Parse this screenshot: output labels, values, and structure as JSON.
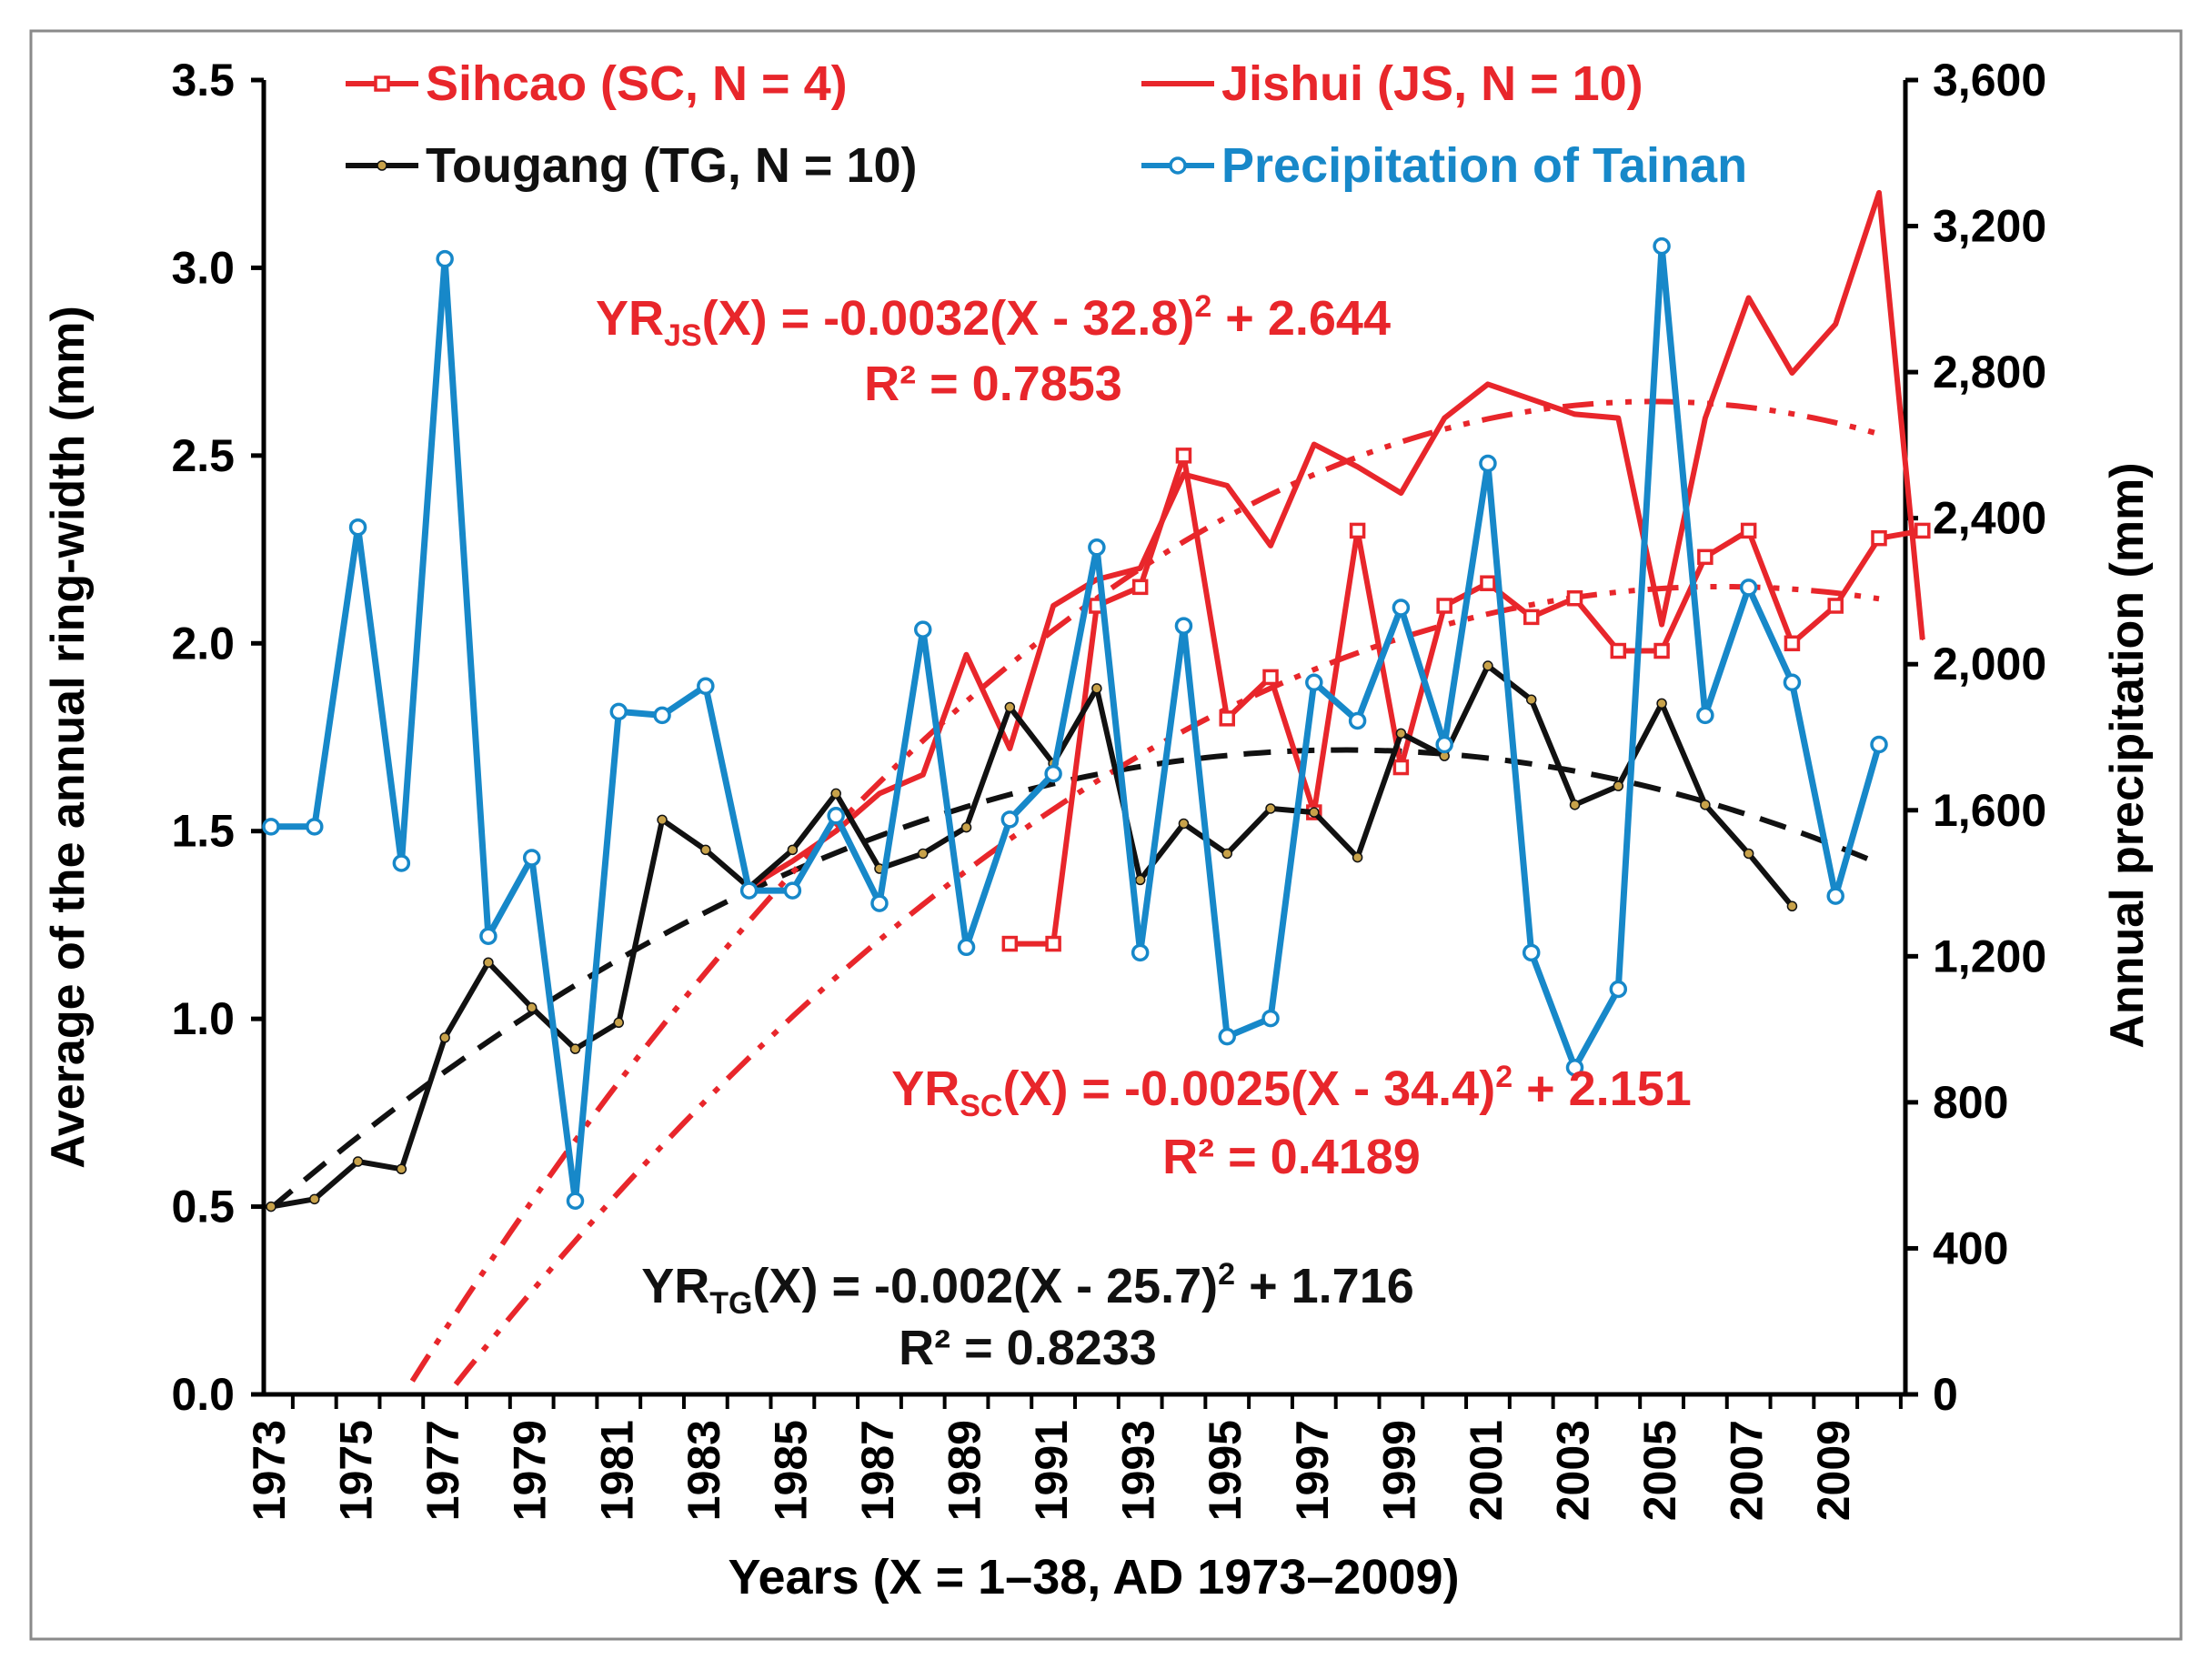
{
  "chart_data": {
    "type": "line",
    "xlabel": "Years (X = 1–38, AD 1973–2009)",
    "ylabel_left": "Average of the annual ring-width (mm)",
    "ylabel_right": "Annual precipitation (mm)",
    "ylim_left": [
      0,
      3.5
    ],
    "ylim_right": [
      0,
      3600
    ],
    "y_ticks_left": [
      0.0,
      0.5,
      1.0,
      1.5,
      2.0,
      2.5,
      3.0,
      3.5
    ],
    "y_tick_labels_left": [
      "0.0",
      "0.5",
      "1.0",
      "1.5",
      "2.0",
      "2.5",
      "3.0",
      "3.5"
    ],
    "y_ticks_right": [
      0,
      400,
      800,
      1200,
      1600,
      2000,
      2400,
      2800,
      3200,
      3600
    ],
    "y_tick_labels_right": [
      "0",
      "400",
      "800",
      "1,200",
      "1,600",
      "2,000",
      "2,400",
      "2,800",
      "3,200",
      "3,600"
    ],
    "x_tick_labels": [
      "1973",
      "1975",
      "1977",
      "1979",
      "1981",
      "1983",
      "1985",
      "1987",
      "1989",
      "1991",
      "1993",
      "1995",
      "1997",
      "1999",
      "2001",
      "2003",
      "2005",
      "2007",
      "2009"
    ],
    "grid": false,
    "legend_position": "top",
    "series": [
      {
        "key": "sc",
        "name": "Sihcao (SC, N = 4)",
        "color": "#e8262b",
        "axis": "left",
        "marker": "square",
        "x_start": 1990,
        "values": [
          1.2,
          1.2,
          2.1,
          2.15,
          2.5,
          1.8,
          1.91,
          1.55,
          2.3,
          1.67,
          2.1,
          2.16,
          2.07,
          2.12,
          1.98,
          1.98,
          2.23,
          2.3,
          2.0,
          2.1,
          2.28,
          2.3
        ]
      },
      {
        "key": "js",
        "name": "Jishui (JS, N = 10)",
        "color": "#e8262b",
        "axis": "left",
        "marker": "none",
        "x_start": 1984,
        "values": [
          1.35,
          1.42,
          1.5,
          1.6,
          1.65,
          1.97,
          1.72,
          2.1,
          2.17,
          2.2,
          2.45,
          2.42,
          2.26,
          2.53,
          2.47,
          2.4,
          2.6,
          2.69,
          2.65,
          2.61,
          2.6,
          2.05,
          2.6,
          2.92,
          2.72,
          2.85,
          3.2,
          2.01
        ]
      },
      {
        "key": "tg",
        "name": "Tougang (TG, N = 10)",
        "color": "#111111",
        "axis": "left",
        "marker": "dot",
        "x_start": 1973,
        "values": [
          0.5,
          0.52,
          0.62,
          0.6,
          0.95,
          1.15,
          1.03,
          0.92,
          0.99,
          1.53,
          1.45,
          1.35,
          1.45,
          1.6,
          1.4,
          1.44,
          1.51,
          1.83,
          1.68,
          1.88,
          1.37,
          1.52,
          1.44,
          1.56,
          1.55,
          1.43,
          1.76,
          1.7,
          1.94,
          1.85,
          1.57,
          1.62,
          1.84,
          1.57,
          1.44,
          1.3
        ]
      },
      {
        "key": "pr",
        "name": "Precipitation of Tainan",
        "color": "#1788c9",
        "axis": "right",
        "marker": "circle",
        "x_start": 1973,
        "values": [
          1555,
          1555,
          2375,
          1455,
          3110,
          1255,
          1470,
          530,
          1870,
          1860,
          1940,
          1380,
          1380,
          1585,
          1345,
          2095,
          1225,
          1575,
          1700,
          2320,
          1210,
          2105,
          980,
          1030,
          1950,
          1845,
          2155,
          1780,
          2550,
          1210,
          895,
          1110,
          3145,
          1860,
          2210,
          1950,
          1365,
          1780
        ]
      }
    ],
    "trendlines": [
      {
        "key": "tg_fit",
        "equation_prefix": "YR",
        "equation_sub": "TG",
        "equation_body": "(X) = -0.002(X - 25.7)",
        "equation_sup": "2",
        "equation_tail": " + 1.716",
        "r2": "R² = 0.8233",
        "a": -0.002,
        "h": 25.7,
        "k": 1.716,
        "color": "#111111",
        "style": "dash"
      },
      {
        "key": "js_fit",
        "equation_prefix": "YR",
        "equation_sub": "JS",
        "equation_body": "(X) = -0.0032(X - 32.8)",
        "equation_sup": "2",
        "equation_tail": " + 2.644",
        "r2": "R² = 0.7853",
        "a": -0.0032,
        "h": 32.8,
        "k": 2.644,
        "color": "#e8262b",
        "style": "dash-dot-dot"
      },
      {
        "key": "sc_fit",
        "equation_prefix": "YR",
        "equation_sub": "SC",
        "equation_body": "(X) = -0.0025(X - 34.4)",
        "equation_sup": "2",
        "equation_tail": " + 2.151",
        "r2": "R² = 0.4189",
        "a": -0.0025,
        "h": 34.4,
        "k": 2.151,
        "color": "#e8262b",
        "style": "dash-dot-dot"
      }
    ]
  }
}
